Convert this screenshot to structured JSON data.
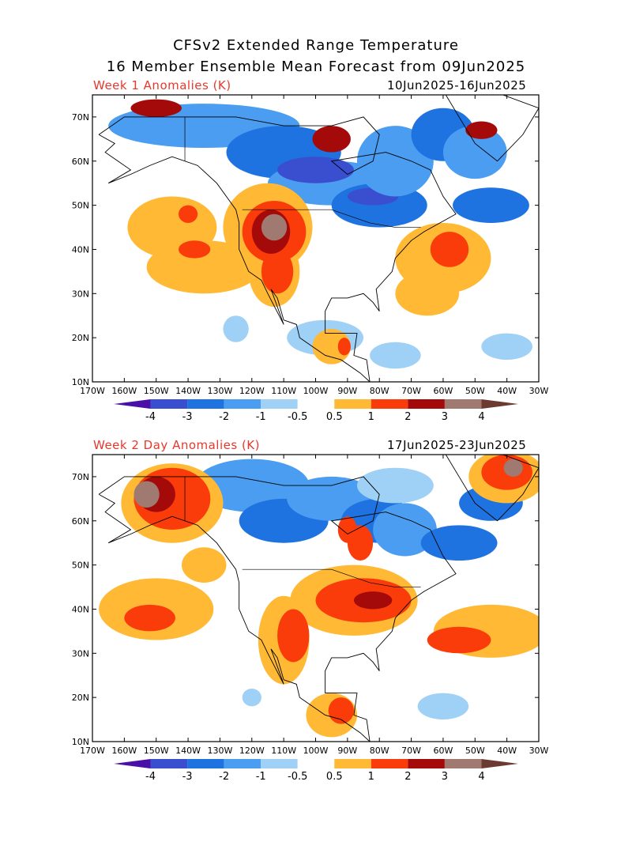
{
  "header": {
    "title_line1": "CFSv2 Extended Range Temperature",
    "title_line2": "16 Member Ensemble Mean Forecast from 09Jun2025"
  },
  "panels": [
    {
      "label": "Week 1 Anomalies (K)",
      "dates": "10Jun2025-16Jun2025"
    },
    {
      "label": "Week 2 Day Anomalies (K)",
      "dates": "17Jun2025-23Jun2025"
    }
  ],
  "axes": {
    "lat_labels": [
      "70N",
      "60N",
      "50N",
      "40N",
      "30N",
      "20N",
      "10N"
    ],
    "lon_labels": [
      "170W",
      "160W",
      "150W",
      "140W",
      "130W",
      "120W",
      "110W",
      "100W",
      "90W",
      "80W",
      "70W",
      "60W",
      "50W",
      "40W",
      "30W"
    ]
  },
  "colorbar": {
    "labels": [
      "-4",
      "-3",
      "-2",
      "-1",
      "-0.5",
      "0.5",
      "1",
      "2",
      "3",
      "4"
    ],
    "colors": [
      "#4a0fa6",
      "#3a4fcf",
      "#1f73e0",
      "#4a9df0",
      "#9fd0f5",
      "#ffffff",
      "#ffb935",
      "#fa3c0a",
      "#a50a0a",
      "#a07a70",
      "#6b3a30"
    ]
  }
}
